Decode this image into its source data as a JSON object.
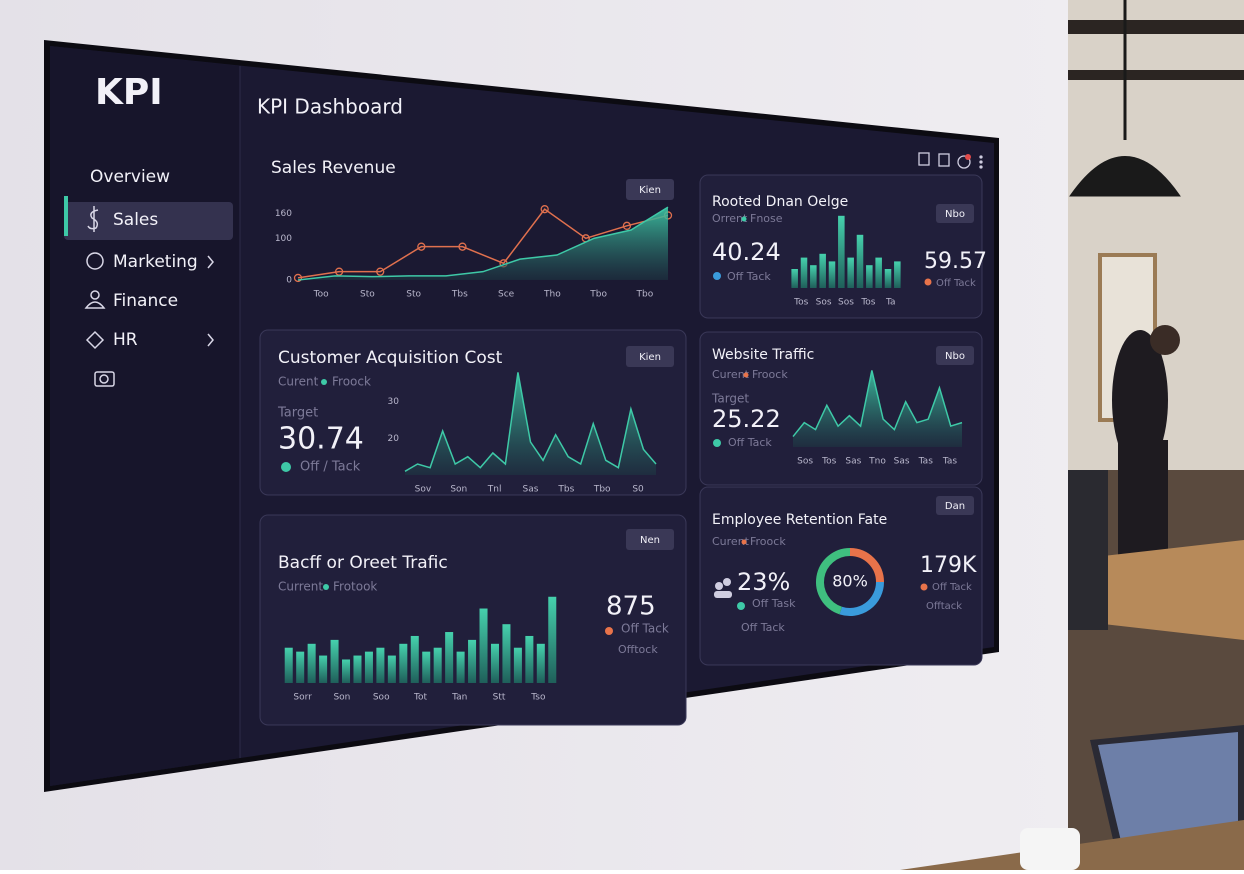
{
  "sidebar": {
    "logo": "KPI",
    "nav": [
      "Overview",
      "Sales",
      "Marketing",
      "Finance",
      "HR"
    ]
  },
  "header": {
    "title": "KPI Dashboard"
  },
  "cards": [
    {
      "title": "Sales Revenue",
      "button": "Kien",
      "chart": {
        "type": "line",
        "xlabels": [
          "Too",
          "Sto",
          "Sto",
          "Tbs",
          "Sce",
          "Tho",
          "Tbo",
          "Tbo"
        ],
        "ylim": [
          0,
          180
        ],
        "yticks": [
          0,
          100,
          160
        ],
        "series": [
          {
            "color": "#e0704e",
            "values": [
              5,
              20,
              20,
              80,
              80,
              40,
              170,
              100,
              130,
              155
            ]
          },
          {
            "color": "#3ec9a7",
            "area": true,
            "values": [
              0,
              10,
              8,
              10,
              10,
              20,
              50,
              60,
              100,
              120,
              175
            ]
          }
        ]
      }
    },
    {
      "title": "Rooted Dnan Oelge",
      "subtitle": [
        "Orrent",
        "Fnose"
      ],
      "button": "Nbo",
      "stats": [
        {
          "value": 40.24,
          "label": "Off Tack",
          "color": "#3a9bdc"
        },
        {
          "value": 59.57,
          "label": "Off Tack",
          "color": "#e8734a"
        }
      ],
      "chart": {
        "type": "bar",
        "xlabels": [
          "Tos",
          "Sos",
          "Sos",
          "Tos",
          "Ta"
        ],
        "ylim": [
          0,
          100
        ],
        "color": "#3ec9a7",
        "values": [
          25,
          40,
          30,
          45,
          35,
          95,
          40,
          70,
          30,
          40,
          25,
          35
        ]
      }
    },
    {
      "title": "Customer Acquisition Cost",
      "subtitle": [
        "Curent",
        "Froock"
      ],
      "button": "Kien",
      "target": "Target",
      "value": 30.74,
      "label": "Off / Tack",
      "chart": {
        "type": "area",
        "xlabels": [
          "Sov",
          "Son",
          "Tnl",
          "Sas",
          "Tbs",
          "Tbo",
          "S0"
        ],
        "ylim": [
          10,
          40
        ],
        "yticks": [
          20,
          30
        ],
        "color": "#3ec9a7",
        "values": [
          11,
          13,
          12,
          22,
          13,
          15,
          12,
          16,
          13,
          38,
          19,
          14,
          21,
          15,
          13,
          24,
          14,
          12,
          28,
          17,
          13
        ]
      }
    },
    {
      "title": "Website Traffic",
      "subtitle": [
        "Curent",
        "Froock"
      ],
      "button": "Nbo",
      "target": "Target",
      "value": 25.22,
      "label": "Off Tack",
      "chart": {
        "type": "area",
        "xlabels": [
          "Sos",
          "Tos",
          "Sas",
          "Tno",
          "Sas",
          "Tas",
          "Tas"
        ],
        "ylim": [
          10,
          35
        ],
        "color": "#3ec9a7",
        "values": [
          13,
          17,
          15,
          22,
          16,
          19,
          16,
          32,
          18,
          15,
          23,
          17,
          18,
          27,
          16,
          17
        ]
      }
    },
    {
      "title": "Bacff or Oreet Trafic",
      "subtitle": [
        "Current",
        "Frotook"
      ],
      "button": "Nen",
      "value": 875,
      "label": "Off Tack",
      "note": "Offtock",
      "chart": {
        "type": "bar",
        "xlabels": [
          "Sorr",
          "Son",
          "Soo",
          "Tot",
          "Tan",
          "Stt",
          "Tso"
        ],
        "ylim": [
          0,
          25
        ],
        "color": "#3ec9a7",
        "values": [
          9,
          8,
          10,
          7,
          11,
          6,
          7,
          8,
          9,
          7,
          10,
          12,
          8,
          9,
          13,
          8,
          11,
          19,
          10,
          15,
          9,
          12,
          10,
          22
        ]
      }
    },
    {
      "title": "Employee Retention Fate",
      "subtitle": [
        "Curent",
        "Froock"
      ],
      "button": "Dan",
      "stat": {
        "value": "23%",
        "label": "Off Task",
        "note": "Off Tack"
      },
      "donut": {
        "center": "80%",
        "values": [
          25,
          30,
          45
        ],
        "colors": [
          "#e8734a",
          "#3a9bdc",
          "#3fbf7f"
        ]
      },
      "stat2": {
        "value": "179K",
        "label": "Off Tack",
        "note": "Offtack"
      }
    }
  ]
}
